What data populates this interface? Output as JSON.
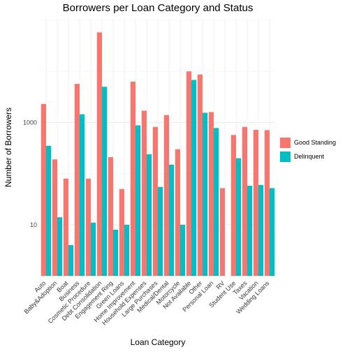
{
  "chart_data": {
    "type": "bar",
    "title": "Borrowers per Loan Category and Status",
    "xlabel": "Loan Category",
    "ylabel": "Number of Borrowers",
    "y_scale": "log10",
    "ylim": [
      1,
      110000
    ],
    "y_ticks": [
      {
        "value": 10,
        "label": "10"
      },
      {
        "value": 1000,
        "label": "1000"
      }
    ],
    "categories": [
      "Auto",
      "Baby&Adoption",
      "Boat",
      "Business",
      "Cosmetic Procedure",
      "Debt Consolidation",
      "Engagement Ring",
      "Green Loans",
      "Home Improvement",
      "Household Expenses",
      "Large Purchases",
      "Medical/Dental",
      "Motorcycle",
      "Not Available",
      "Other",
      "Personal Loan",
      "RV",
      "Student Use",
      "Taxes",
      "Vacation",
      "Wedding Loans"
    ],
    "series": [
      {
        "name": "Good Standing",
        "color": "#F8766D",
        "values": [
          2300,
          190,
          80,
          5700,
          80,
          58000,
          210,
          50,
          6300,
          1700,
          820,
          1400,
          300,
          10000,
          8700,
          1600,
          52,
          570,
          820,
          720,
          710
        ]
      },
      {
        "name": "Delinquent",
        "color": "#00BFC4",
        "values": [
          350,
          14,
          4,
          1450,
          11,
          5000,
          8,
          10,
          880,
          240,
          55,
          150,
          10,
          6800,
          1550,
          780,
          null,
          200,
          58,
          60,
          52
        ]
      }
    ],
    "grid": true,
    "legend_position": "right"
  }
}
